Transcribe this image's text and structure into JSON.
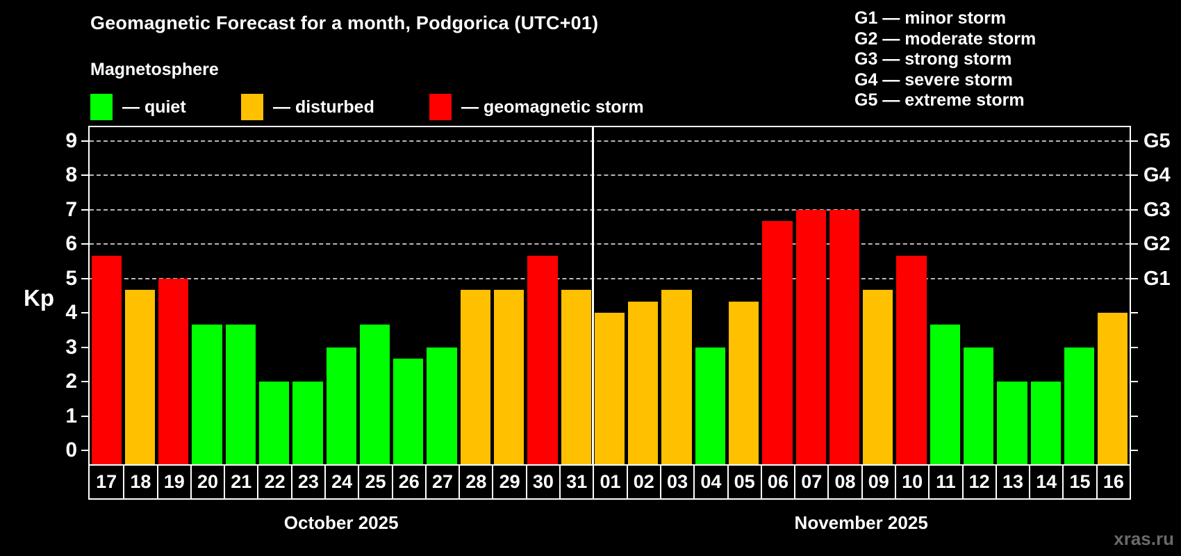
{
  "header": {
    "title": "Geomagnetic Forecast for a month, Podgorica (UTC+01)",
    "subtitle": "Magnetosphere"
  },
  "legend": {
    "items": [
      {
        "key": "quiet",
        "label": "— quiet",
        "color": "#00ff00"
      },
      {
        "key": "disturbed",
        "label": "— disturbed",
        "color": "#ffc000"
      },
      {
        "key": "storm",
        "label": "— geomagnetic storm",
        "color": "#ff0000"
      }
    ]
  },
  "g_scale_legend": {
    "lines": [
      "G1 — minor storm",
      "G2 — moderate storm",
      "G3 — strong storm",
      "G4 — severe storm",
      "G5 — extreme storm"
    ]
  },
  "axis": {
    "left_label": "Kp"
  },
  "watermark": "xras.ru",
  "colors": {
    "quiet": "#00ff00",
    "disturbed": "#ffc000",
    "storm": "#ff0000",
    "background": "#000000",
    "axis": "#ffffff",
    "grid": "#b8b8b8",
    "text": "#ffffff",
    "watermark": "#6a6a6a"
  },
  "chart_data": {
    "type": "bar",
    "title": "Geomagnetic Forecast for a month, Podgorica (UTC+01)",
    "xlabel": "",
    "ylabel": "Kp",
    "ylim": [
      -0.4,
      9.4
    ],
    "yticks": [
      0,
      1,
      2,
      3,
      4,
      5,
      6,
      7,
      8,
      9
    ],
    "gridlines_at": [
      5,
      6,
      7,
      8,
      9
    ],
    "grid": true,
    "right_axis_labels": [
      {
        "kp": 5,
        "label": "G1"
      },
      {
        "kp": 6,
        "label": "G2"
      },
      {
        "kp": 7,
        "label": "G3"
      },
      {
        "kp": 8,
        "label": "G4"
      },
      {
        "kp": 9,
        "label": "G5"
      }
    ],
    "months": [
      {
        "label": "October 2025",
        "days": 15
      },
      {
        "label": "November 2025",
        "days": 16
      }
    ],
    "categories": [
      "17",
      "18",
      "19",
      "20",
      "21",
      "22",
      "23",
      "24",
      "25",
      "26",
      "27",
      "28",
      "29",
      "30",
      "31",
      "01",
      "02",
      "03",
      "04",
      "05",
      "06",
      "07",
      "08",
      "09",
      "10",
      "11",
      "12",
      "13",
      "14",
      "15",
      "16"
    ],
    "values": [
      5.67,
      4.67,
      5.0,
      3.67,
      3.67,
      2.0,
      2.0,
      3.0,
      3.67,
      2.67,
      3.0,
      4.67,
      4.67,
      5.67,
      4.67,
      4.0,
      4.33,
      4.67,
      3.0,
      4.33,
      6.67,
      7.0,
      7.0,
      4.67,
      5.67,
      3.67,
      3.0,
      2.0,
      2.0,
      3.0,
      4.0
    ],
    "statuses": [
      "storm",
      "disturbed",
      "storm",
      "quiet",
      "quiet",
      "quiet",
      "quiet",
      "quiet",
      "quiet",
      "quiet",
      "quiet",
      "disturbed",
      "disturbed",
      "storm",
      "disturbed",
      "disturbed",
      "disturbed",
      "disturbed",
      "quiet",
      "disturbed",
      "storm",
      "storm",
      "storm",
      "disturbed",
      "storm",
      "quiet",
      "quiet",
      "quiet",
      "quiet",
      "quiet",
      "disturbed"
    ]
  }
}
